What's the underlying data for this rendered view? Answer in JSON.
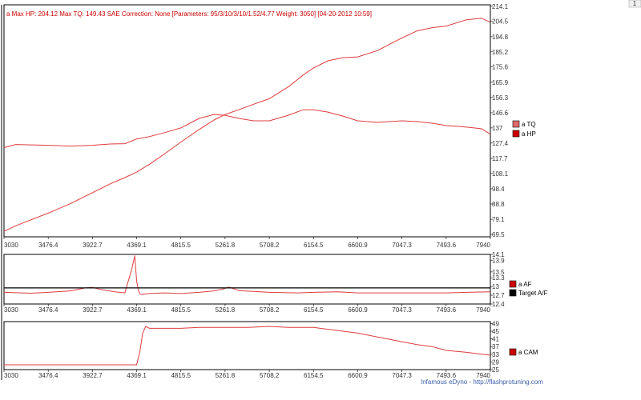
{
  "colors": {
    "series_red": "#e03c3c",
    "tq_swatch": "#e06a6a",
    "hp_swatch": "#cc0000",
    "target_af": "#000000",
    "frame": "#000000",
    "footer_link": "#3b5fa8",
    "corner_box": "#f0f0f0"
  },
  "corner_label": "1",
  "footer": "Infamous eDyno - http://flashprotuning.com",
  "chart_data": [
    {
      "type": "line",
      "title": "a Max HP: 204.12 Max TQ: 149.43 SAE Correction: None [Parameters: 95/3/10/3/10/1.52/4.77 Weight: 3050] [04-20-2012 10:59]",
      "xlim": [
        3030,
        7940
      ],
      "ylim": [
        68,
        215
      ],
      "xticks": [
        "3030",
        "3476.4",
        "3922.7",
        "4369.1",
        "4815.5",
        "5261.8",
        "5708.2",
        "6154.5",
        "6600.9",
        "7047.3",
        "7493.6",
        "7940"
      ],
      "yticks": [
        "214.1",
        "204.5",
        "194.8",
        "185.2",
        "175.6",
        "165.9",
        "156.3",
        "146.6",
        "137",
        "127.4",
        "117.7",
        "108.1",
        "98.4",
        "88.8",
        "79.1",
        "69.5"
      ],
      "legend": [
        "a TQ",
        "a HP"
      ],
      "series": [
        {
          "name": "a TQ",
          "x": [
            3030,
            3150,
            3476.4,
            3700,
            3922.7,
            4100,
            4250,
            4369.1,
            4500,
            4650,
            4815.5,
            5000,
            5150,
            5261.8,
            5400,
            5550,
            5708.2,
            5900,
            6050,
            6154.5,
            6300,
            6450,
            6600.9,
            6800,
            7047.3,
            7200,
            7350,
            7493.6,
            7700,
            7850,
            7940
          ],
          "values": [
            124.5,
            126.5,
            126,
            125.5,
            126,
            126.8,
            127,
            130,
            131.5,
            134,
            137,
            143,
            145.5,
            145,
            143,
            141.5,
            141.5,
            145,
            148.5,
            148.5,
            147,
            144.5,
            141.5,
            140.5,
            141.5,
            141,
            140,
            138.5,
            137.5,
            136.5,
            133
          ]
        },
        {
          "name": "a HP",
          "x": [
            3030,
            3150,
            3476.4,
            3700,
            3922.7,
            4100,
            4250,
            4369.1,
            4500,
            4650,
            4815.5,
            5000,
            5150,
            5261.8,
            5400,
            5550,
            5708.2,
            5900,
            6050,
            6154.5,
            6300,
            6450,
            6600.9,
            6800,
            7047.3,
            7200,
            7350,
            7493.6,
            7700,
            7850,
            7940
          ],
          "values": [
            71.5,
            75,
            83,
            89,
            96,
            101.5,
            105.5,
            109,
            114,
            120.5,
            128,
            136,
            142,
            145.5,
            148.5,
            152,
            155.5,
            163,
            170.5,
            175,
            179.5,
            181.5,
            182,
            186,
            194,
            198.5,
            200.5,
            201.5,
            205.5,
            206.5,
            204
          ]
        }
      ]
    },
    {
      "type": "line",
      "xlim": [
        3030,
        7940
      ],
      "ylim": [
        12.4,
        14.1
      ],
      "xticks": [
        "3030",
        "3476.4",
        "3922.7",
        "4369.1",
        "4815.5",
        "5261.8",
        "5708.2",
        "6154.5",
        "6600.9",
        "7047.3",
        "7493.6",
        "7940"
      ],
      "yticks": [
        "14.1",
        "13.9",
        "13.5",
        "13.3",
        "13",
        "12.7",
        "12.4"
      ],
      "legend": [
        "a AF",
        "Target A/F"
      ],
      "series": [
        {
          "name": "a AF",
          "x": [
            3030,
            3300,
            3476.4,
            3700,
            3850,
            3922.7,
            4000,
            4150,
            4250,
            4320,
            4350,
            4369.1,
            4385,
            4400,
            4420,
            4450,
            4500,
            4650,
            4815.5,
            5000,
            5150,
            5250,
            5300,
            5400,
            5708.2,
            6000,
            6154.5,
            6400,
            6600.9,
            7047.3,
            7493.6,
            7700,
            7940
          ],
          "values": [
            12.8,
            12.77,
            12.8,
            12.85,
            12.95,
            12.97,
            12.9,
            12.82,
            12.78,
            13.6,
            14.05,
            13.2,
            12.9,
            12.75,
            12.72,
            12.74,
            12.76,
            12.78,
            12.76,
            12.8,
            12.85,
            12.92,
            12.98,
            12.86,
            12.8,
            12.78,
            12.8,
            12.82,
            12.78,
            12.78,
            12.78,
            12.8,
            12.82
          ]
        },
        {
          "name": "Target A/F",
          "x": [
            3030,
            7940
          ],
          "values": [
            12.95,
            12.95
          ]
        }
      ]
    },
    {
      "type": "line",
      "xlim": [
        3030,
        7940
      ],
      "ylim": [
        25,
        50
      ],
      "xticks": [
        "3030",
        "3476.4",
        "3922.7",
        "4369.1",
        "4815.5",
        "5261.8",
        "5708.2",
        "6154.5",
        "6600.9",
        "7047.3",
        "7493.6",
        "7940"
      ],
      "yticks": [
        "49",
        "45",
        "41",
        "37",
        "33",
        "29",
        "25"
      ],
      "legend": [
        "a CAM"
      ],
      "series": [
        {
          "name": "a CAM",
          "x": [
            3030,
            3300,
            3476.4,
            3700,
            3922.7,
            4100,
            4300,
            4369.1,
            4400,
            4430,
            4460,
            4500,
            4650,
            4815.5,
            5000,
            5261.8,
            5500,
            5708.2,
            5900,
            6154.5,
            6300,
            6450,
            6600.9,
            6800,
            7000,
            7047.3,
            7200,
            7350,
            7493.6,
            7700,
            7850,
            7940
          ],
          "values": [
            27.5,
            27.5,
            27.5,
            27.5,
            27.5,
            27.5,
            27.5,
            27.5,
            34,
            44,
            47.5,
            46.5,
            46.5,
            46.5,
            47,
            47,
            47,
            47.5,
            47,
            47,
            46,
            45,
            44,
            42,
            40,
            39.5,
            38,
            37,
            35,
            34,
            33,
            32.5
          ]
        }
      ]
    }
  ]
}
